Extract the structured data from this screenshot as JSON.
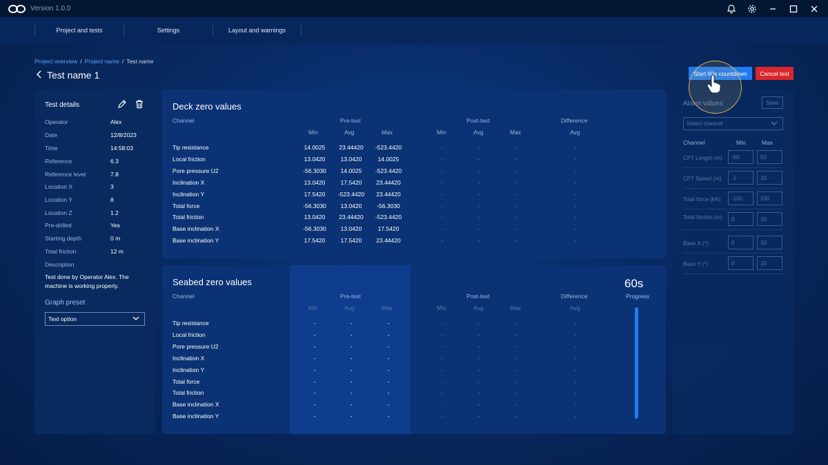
{
  "app": {
    "version": "Version 1.0.0"
  },
  "nav": {
    "tabs": [
      "Project and tests",
      "Settings",
      "Layout and warnings"
    ]
  },
  "breadcrumb": {
    "items": [
      "Project overview",
      "Project name",
      "Test name"
    ]
  },
  "page": {
    "title": "Test name 1"
  },
  "actions": {
    "start_label": "Start 60s countdown",
    "cancel_label": "Cancel test"
  },
  "details": {
    "title": "Test details",
    "fields": [
      {
        "label": "Operator",
        "value": "Alex"
      },
      {
        "label": "Date",
        "value": "12/8/2023"
      },
      {
        "label": "Time",
        "value": "14:58:03"
      },
      {
        "label": "Reference",
        "value": "6.3"
      },
      {
        "label": "Reference level",
        "value": "7.8"
      },
      {
        "label": "Location X",
        "value": "3"
      },
      {
        "label": "Location Y",
        "value": "8"
      },
      {
        "label": "Location Z",
        "value": "1.2"
      },
      {
        "label": "Pre-drilled",
        "value": "Yes"
      },
      {
        "label": "Starting depth",
        "value": "0 m"
      },
      {
        "label": "Total friction",
        "value": "12 m"
      }
    ],
    "description_label": "Description",
    "description": "Test done by Operator Alex. The machine is working properly.",
    "graph_preset_label": "Graph preset",
    "graph_preset_value": "Text option"
  },
  "headers": {
    "channel": "Channel",
    "pre_test": "Pre-test",
    "post_test": "Post-test",
    "difference": "Difference",
    "min": "Min",
    "avg": "Avg",
    "max": "Max"
  },
  "channels": [
    "Tip resistance",
    "Local friction",
    "Pore pressure U2",
    "Inclination X",
    "Inclination Y",
    "Total force",
    "Total friction",
    "Base inclination X",
    "Base inclination Y"
  ],
  "deck": {
    "title": "Deck zero values",
    "rows": [
      [
        "14.0025",
        "23.44420",
        "-523.4420"
      ],
      [
        "13.0420",
        "13.0420",
        "14.0025"
      ],
      [
        "-56.3030",
        "14.0025",
        "-523.4420"
      ],
      [
        "13.0420",
        "17.5420",
        "23.44420"
      ],
      [
        "17.5420",
        "-523.4420",
        "23.44420"
      ],
      [
        "-56.3030",
        "13.0420",
        "-56.3030"
      ],
      [
        "13.0420",
        "23.44420",
        "-523.4420"
      ],
      [
        "-56.3030",
        "13.0420",
        "17.5420"
      ],
      [
        "17.5420",
        "17.5420",
        "23.44420"
      ]
    ],
    "placeholder": "-"
  },
  "seabed": {
    "title": "Seabed zero values",
    "placeholder": "-",
    "countdown": "60s",
    "progress_label": "Progress",
    "progress_fraction": 1.0
  },
  "alarm": {
    "title": "Alarm values",
    "save_label": "Save",
    "select_placeholder": "Select channel",
    "col_channel": "Channel",
    "col_min": "Min",
    "col_max": "Max",
    "rows": [
      {
        "label": "CPT Length (m)",
        "min": "-50",
        "max": "50"
      },
      {
        "label": "CPT Speed (m)",
        "min": "-1",
        "max": "10"
      },
      {
        "label": "Total force (kN)",
        "min": "-100",
        "max": "200"
      },
      {
        "label": "Total friction (m)",
        "min": "0",
        "max": "10"
      },
      {
        "label": "Base X (°)",
        "min": "0",
        "max": "10"
      },
      {
        "label": "Base Y (°)",
        "min": "0",
        "max": "15"
      }
    ]
  },
  "colors": {
    "accent": "#1f7cf0",
    "danger": "#d9262c",
    "background": "#082a63"
  }
}
